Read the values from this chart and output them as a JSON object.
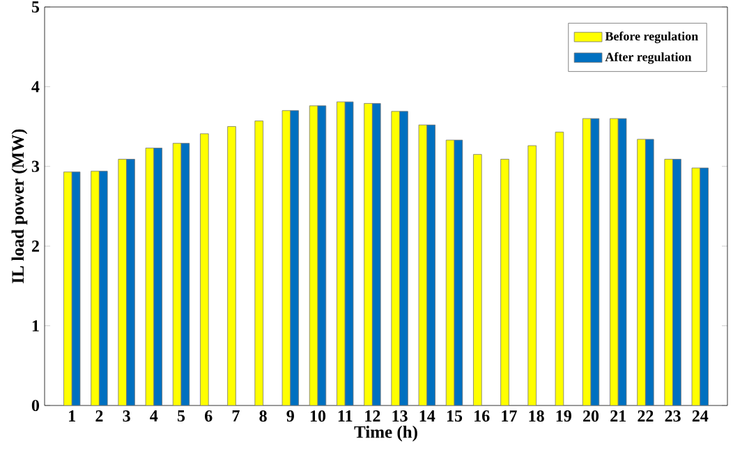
{
  "chart_data": {
    "type": "bar",
    "xlabel": "Time (h)",
    "ylabel": "IL load power (MW)",
    "categories": [
      "1",
      "2",
      "3",
      "4",
      "5",
      "6",
      "7",
      "8",
      "9",
      "10",
      "11",
      "12",
      "13",
      "14",
      "15",
      "16",
      "17",
      "18",
      "19",
      "20",
      "21",
      "22",
      "23",
      "24"
    ],
    "series": [
      {
        "name": "Before regulation",
        "color": "#ffff00",
        "values": [
          2.93,
          2.94,
          3.09,
          3.23,
          3.29,
          3.41,
          3.5,
          3.57,
          3.7,
          3.76,
          3.81,
          3.79,
          3.69,
          3.52,
          3.33,
          3.15,
          3.09,
          3.26,
          3.43,
          3.6,
          3.6,
          3.34,
          3.09,
          2.98
        ]
      },
      {
        "name": "After regulation",
        "color": "#0070c0",
        "values": [
          2.93,
          2.94,
          3.09,
          3.23,
          3.29,
          null,
          null,
          null,
          3.7,
          3.76,
          3.81,
          3.79,
          3.69,
          3.52,
          3.33,
          null,
          null,
          null,
          null,
          3.6,
          3.6,
          3.34,
          3.09,
          2.98
        ]
      }
    ],
    "ylim": [
      0,
      5
    ],
    "yticks": [
      0,
      1,
      2,
      3,
      4,
      5
    ],
    "grid": false,
    "legend": "top right"
  }
}
